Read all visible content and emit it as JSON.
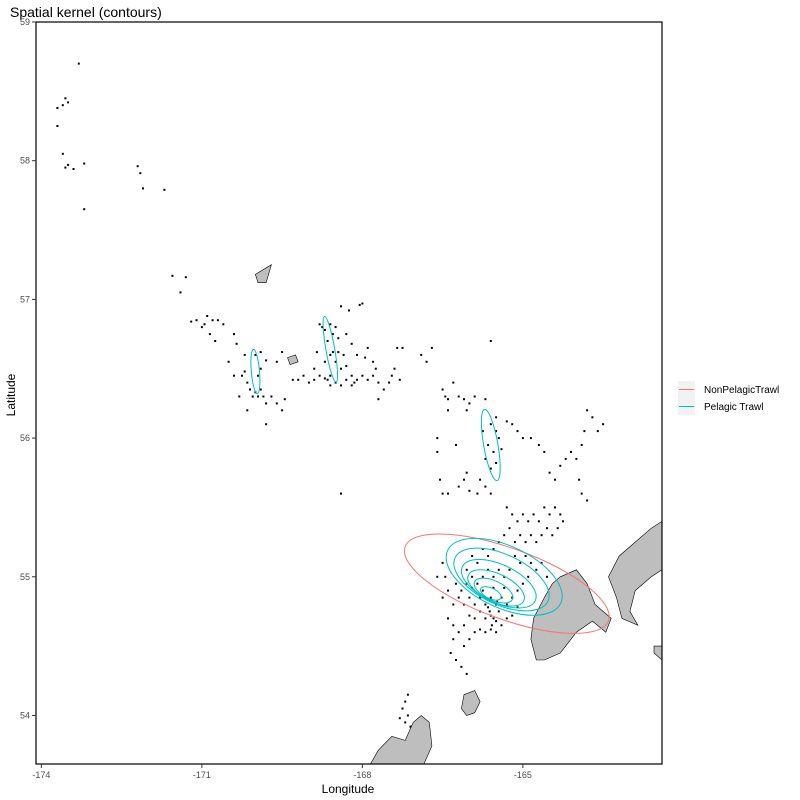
{
  "chart_data": {
    "type": "scatter",
    "title": "Spatial kernel (contours)",
    "xlabel": "Longitude",
    "ylabel": "Latitude",
    "xlim": [
      -174.1,
      -162.4
    ],
    "ylim": [
      53.65,
      59.0
    ],
    "xticks": [
      -174,
      -171,
      -168,
      -165
    ],
    "xtick_labels": [
      "-174",
      "-171",
      "-168",
      "-165"
    ],
    "yticks": [
      54,
      55,
      56,
      57,
      58,
      59
    ],
    "ytick_labels": [
      "54",
      "55",
      "56",
      "57",
      "58",
      "59"
    ],
    "grid": false,
    "legend_position": "right",
    "series": [
      {
        "name": "NonPelagicTrawl",
        "color": "#f8766d",
        "kind": "contour"
      },
      {
        "name": "Pelagic Trawl",
        "color": "#00bfc4",
        "kind": "contour"
      }
    ],
    "contours": {
      "NonPelagicTrawl": [
        {
          "cx": -165.3,
          "cy": 54.95,
          "rx": 1.2,
          "ry": 0.78,
          "rot": 20
        }
      ],
      "Pelagic Trawl": [
        {
          "cx": -165.35,
          "cy": 55.0,
          "rx": 1.05,
          "ry": 0.45,
          "rot": 25
        },
        {
          "cx": -165.4,
          "cy": 54.98,
          "rx": 0.85,
          "ry": 0.37,
          "rot": 25
        },
        {
          "cx": -165.45,
          "cy": 54.95,
          "rx": 0.65,
          "ry": 0.29,
          "rot": 25
        },
        {
          "cx": -165.5,
          "cy": 54.92,
          "rx": 0.48,
          "ry": 0.22,
          "rot": 25
        },
        {
          "cx": -165.55,
          "cy": 54.9,
          "rx": 0.33,
          "ry": 0.15,
          "rot": 25
        },
        {
          "cx": -165.6,
          "cy": 54.88,
          "rx": 0.18,
          "ry": 0.08,
          "rot": 25
        },
        {
          "cx": -165.6,
          "cy": 55.95,
          "rx": 0.24,
          "ry": 0.26,
          "rot": 80
        },
        {
          "cx": -170.0,
          "cy": 56.48,
          "rx": 0.14,
          "ry": 0.16,
          "rot": 85
        },
        {
          "cx": -168.6,
          "cy": 56.64,
          "rx": 0.15,
          "ry": 0.24,
          "rot": 80
        }
      ]
    },
    "landmasses": [
      [
        [
          -170.0,
          57.18
        ],
        [
          -169.7,
          57.25
        ],
        [
          -169.8,
          57.12
        ],
        [
          -169.95,
          57.12
        ]
      ],
      [
        [
          -169.4,
          56.58
        ],
        [
          -169.25,
          56.6
        ],
        [
          -169.2,
          56.55
        ],
        [
          -169.35,
          56.53
        ]
      ],
      [
        [
          -164.3,
          55.0
        ],
        [
          -164.0,
          55.05
        ],
        [
          -163.8,
          54.95
        ],
        [
          -163.65,
          54.8
        ],
        [
          -163.35,
          54.7
        ],
        [
          -163.45,
          54.6
        ],
        [
          -163.7,
          54.68
        ],
        [
          -164.0,
          54.6
        ],
        [
          -164.3,
          54.45
        ],
        [
          -164.6,
          54.4
        ],
        [
          -164.75,
          54.4
        ],
        [
          -164.85,
          54.55
        ],
        [
          -164.8,
          54.7
        ],
        [
          -164.6,
          54.85
        ],
        [
          -164.45,
          54.95
        ]
      ],
      [
        [
          -163.4,
          55.0
        ],
        [
          -163.2,
          55.15
        ],
        [
          -162.9,
          55.25
        ],
        [
          -162.6,
          55.35
        ],
        [
          -162.4,
          55.4
        ],
        [
          -162.4,
          55.05
        ],
        [
          -162.6,
          55.0
        ],
        [
          -162.9,
          54.9
        ],
        [
          -163.0,
          54.75
        ],
        [
          -162.85,
          54.65
        ],
        [
          -163.15,
          54.7
        ],
        [
          -163.25,
          54.85
        ]
      ],
      [
        [
          -162.55,
          54.5
        ],
        [
          -162.4,
          54.5
        ],
        [
          -162.4,
          54.4
        ],
        [
          -162.55,
          54.45
        ]
      ],
      [
        [
          -166.1,
          54.15
        ],
        [
          -165.9,
          54.18
        ],
        [
          -165.8,
          54.1
        ],
        [
          -165.9,
          54.02
        ],
        [
          -166.05,
          54.0
        ],
        [
          -166.15,
          54.05
        ]
      ],
      [
        [
          -167.2,
          53.82
        ],
        [
          -167.45,
          53.85
        ],
        [
          -167.7,
          53.75
        ],
        [
          -167.85,
          53.65
        ],
        [
          -166.85,
          53.65
        ],
        [
          -166.7,
          53.78
        ],
        [
          -166.75,
          53.95
        ],
        [
          -166.9,
          54.0
        ],
        [
          -167.05,
          53.95
        ]
      ]
    ],
    "points": [
      [
        -173.6,
        58.4
      ],
      [
        -173.5,
        58.42
      ],
      [
        -173.55,
        58.45
      ],
      [
        -173.3,
        58.7
      ],
      [
        -173.7,
        58.25
      ],
      [
        -173.7,
        58.38
      ],
      [
        -173.6,
        58.05
      ],
      [
        -173.55,
        57.95
      ],
      [
        -173.5,
        57.97
      ],
      [
        -173.4,
        57.94
      ],
      [
        -173.2,
        57.98
      ],
      [
        -173.2,
        57.65
      ],
      [
        -172.2,
        57.96
      ],
      [
        -172.15,
        57.91
      ],
      [
        -172.1,
        57.8
      ],
      [
        -171.7,
        57.79
      ],
      [
        -171.55,
        57.17
      ],
      [
        -171.3,
        57.16
      ],
      [
        -171.4,
        57.05
      ],
      [
        -171.2,
        56.84
      ],
      [
        -171.1,
        56.85
      ],
      [
        -171.0,
        56.8
      ],
      [
        -170.95,
        56.82
      ],
      [
        -170.9,
        56.88
      ],
      [
        -170.8,
        56.85
      ],
      [
        -170.7,
        56.85
      ],
      [
        -170.85,
        56.75
      ],
      [
        -170.6,
        56.82
      ],
      [
        -170.75,
        56.7
      ],
      [
        -170.4,
        56.75
      ],
      [
        -170.35,
        56.68
      ],
      [
        -170.2,
        56.6
      ],
      [
        -170.0,
        56.6
      ],
      [
        -169.9,
        56.62
      ],
      [
        -169.8,
        56.56
      ],
      [
        -169.6,
        56.55
      ],
      [
        -169.5,
        56.62
      ],
      [
        -170.2,
        56.48
      ],
      [
        -170.15,
        56.4
      ],
      [
        -170.1,
        56.35
      ],
      [
        -170.05,
        56.3
      ],
      [
        -170.0,
        56.33
      ],
      [
        -169.95,
        56.3
      ],
      [
        -169.9,
        56.35
      ],
      [
        -169.85,
        56.3
      ],
      [
        -169.8,
        56.25
      ],
      [
        -169.7,
        56.3
      ],
      [
        -169.6,
        56.25
      ],
      [
        -169.5,
        56.2
      ],
      [
        -169.45,
        56.28
      ],
      [
        -169.8,
        56.1
      ],
      [
        -170.15,
        56.2
      ],
      [
        -170.3,
        56.3
      ],
      [
        -170.5,
        56.55
      ],
      [
        -170.4,
        56.45
      ],
      [
        -170.25,
        56.45
      ],
      [
        -169.95,
        56.45
      ],
      [
        -169.9,
        56.5
      ],
      [
        -169.3,
        56.42
      ],
      [
        -169.2,
        56.42
      ],
      [
        -169.1,
        56.45
      ],
      [
        -169.0,
        56.4
      ],
      [
        -168.9,
        56.42
      ],
      [
        -168.8,
        56.45
      ],
      [
        -168.7,
        56.43
      ],
      [
        -168.6,
        56.45
      ],
      [
        -168.5,
        56.4
      ],
      [
        -168.4,
        56.38
      ],
      [
        -168.3,
        56.42
      ],
      [
        -168.2,
        56.45
      ],
      [
        -168.1,
        56.42
      ],
      [
        -168.0,
        56.45
      ],
      [
        -167.9,
        56.42
      ],
      [
        -167.8,
        56.45
      ],
      [
        -167.7,
        56.4
      ],
      [
        -168.8,
        56.82
      ],
      [
        -168.75,
        56.8
      ],
      [
        -168.7,
        56.78
      ],
      [
        -168.6,
        56.82
      ],
      [
        -168.55,
        56.75
      ],
      [
        -168.5,
        56.8
      ],
      [
        -168.45,
        56.72
      ],
      [
        -168.4,
        56.95
      ],
      [
        -168.25,
        56.92
      ],
      [
        -168.0,
        56.97
      ],
      [
        -168.05,
        56.96
      ],
      [
        -168.3,
        56.75
      ],
      [
        -168.2,
        56.68
      ],
      [
        -168.1,
        56.6
      ],
      [
        -168.6,
        56.6
      ],
      [
        -168.7,
        56.55
      ],
      [
        -168.5,
        56.55
      ],
      [
        -168.4,
        56.5
      ],
      [
        -168.3,
        56.52
      ],
      [
        -168.85,
        56.62
      ],
      [
        -168.9,
        56.5
      ],
      [
        -168.65,
        56.7
      ],
      [
        -168.55,
        56.62
      ],
      [
        -168.45,
        56.62
      ],
      [
        -168.35,
        56.6
      ],
      [
        -168.65,
        56.42
      ],
      [
        -168.6,
        56.38
      ],
      [
        -168.2,
        56.38
      ],
      [
        -168.15,
        56.4
      ],
      [
        -167.95,
        56.58
      ],
      [
        -167.9,
        56.65
      ],
      [
        -167.8,
        56.55
      ],
      [
        -167.75,
        56.5
      ],
      [
        -167.6,
        56.35
      ],
      [
        -167.5,
        56.4
      ],
      [
        -167.45,
        56.45
      ],
      [
        -167.4,
        56.5
      ],
      [
        -167.35,
        56.65
      ],
      [
        -167.25,
        56.65
      ],
      [
        -167.3,
        56.42
      ],
      [
        -167.7,
        56.28
      ],
      [
        -168.4,
        55.6
      ],
      [
        -166.8,
        56.55
      ],
      [
        -166.7,
        56.65
      ],
      [
        -166.9,
        56.6
      ],
      [
        -166.5,
        56.35
      ],
      [
        -166.45,
        56.3
      ],
      [
        -166.4,
        56.28
      ],
      [
        -166.4,
        56.2
      ],
      [
        -166.3,
        56.4
      ],
      [
        -166.2,
        56.3
      ],
      [
        -166.1,
        56.28
      ],
      [
        -166.0,
        56.25
      ],
      [
        -166.05,
        56.2
      ],
      [
        -165.9,
        56.3
      ],
      [
        -165.7,
        56.28
      ],
      [
        -165.5,
        56.15
      ],
      [
        -165.3,
        56.12
      ],
      [
        -165.2,
        56.1
      ],
      [
        -165.1,
        56.05
      ],
      [
        -165.0,
        56.0
      ],
      [
        -164.85,
        56.0
      ],
      [
        -164.7,
        55.95
      ],
      [
        -164.6,
        55.9
      ],
      [
        -164.5,
        55.75
      ],
      [
        -164.4,
        55.7
      ],
      [
        -164.3,
        55.8
      ],
      [
        -164.2,
        55.85
      ],
      [
        -164.1,
        55.9
      ],
      [
        -164.0,
        55.85
      ],
      [
        -163.9,
        55.95
      ],
      [
        -163.85,
        56.05
      ],
      [
        -163.8,
        56.2
      ],
      [
        -163.7,
        56.15
      ],
      [
        -163.6,
        56.05
      ],
      [
        -163.5,
        56.1
      ],
      [
        -163.95,
        55.7
      ],
      [
        -163.9,
        55.6
      ],
      [
        -163.8,
        55.55
      ],
      [
        -165.6,
        56.7
      ],
      [
        -166.6,
        56.0
      ],
      [
        -166.25,
        55.95
      ],
      [
        -166.05,
        55.75
      ],
      [
        -166.1,
        55.7
      ],
      [
        -166.2,
        55.65
      ],
      [
        -166.4,
        55.6
      ],
      [
        -166.5,
        55.6
      ],
      [
        -166.55,
        55.7
      ],
      [
        -166.6,
        55.9
      ],
      [
        -165.6,
        56.1
      ],
      [
        -165.5,
        56.05
      ],
      [
        -165.45,
        56.0
      ],
      [
        -165.65,
        55.95
      ],
      [
        -165.55,
        55.9
      ],
      [
        -165.7,
        55.85
      ],
      [
        -165.5,
        55.82
      ],
      [
        -165.6,
        55.78
      ],
      [
        -165.75,
        56.05
      ],
      [
        -165.4,
        55.92
      ],
      [
        -165.8,
        55.7
      ],
      [
        -165.7,
        55.65
      ],
      [
        -165.6,
        55.6
      ],
      [
        -165.85,
        55.6
      ],
      [
        -166.0,
        55.62
      ],
      [
        -165.3,
        55.5
      ],
      [
        -165.2,
        55.45
      ],
      [
        -165.1,
        55.4
      ],
      [
        -165.0,
        55.45
      ],
      [
        -164.9,
        55.4
      ],
      [
        -164.8,
        55.45
      ],
      [
        -164.7,
        55.4
      ],
      [
        -164.6,
        55.5
      ],
      [
        -164.5,
        55.45
      ],
      [
        -164.4,
        55.5
      ],
      [
        -164.3,
        55.45
      ],
      [
        -164.25,
        55.4
      ],
      [
        -164.35,
        55.35
      ],
      [
        -164.45,
        55.3
      ],
      [
        -164.55,
        55.35
      ],
      [
        -164.65,
        55.3
      ],
      [
        -164.75,
        55.25
      ],
      [
        -164.85,
        55.3
      ],
      [
        -164.95,
        55.25
      ],
      [
        -165.05,
        55.3
      ],
      [
        -165.15,
        55.25
      ],
      [
        -165.25,
        55.35
      ],
      [
        -165.35,
        55.3
      ],
      [
        -165.45,
        55.25
      ],
      [
        -165.55,
        55.2
      ],
      [
        -165.65,
        55.15
      ],
      [
        -165.75,
        55.2
      ],
      [
        -165.85,
        55.1
      ],
      [
        -165.95,
        55.15
      ],
      [
        -166.05,
        55.05
      ],
      [
        -165.15,
        55.15
      ],
      [
        -165.05,
        55.1
      ],
      [
        -164.95,
        55.15
      ],
      [
        -164.85,
        55.1
      ],
      [
        -164.75,
        55.05
      ],
      [
        -164.65,
        55.1
      ],
      [
        -164.55,
        55.0
      ],
      [
        -165.25,
        55.05
      ],
      [
        -165.35,
        55.0
      ],
      [
        -165.45,
        55.05
      ],
      [
        -165.55,
        55.0
      ],
      [
        -165.65,
        55.05
      ],
      [
        -165.75,
        55.0
      ],
      [
        -165.85,
        54.95
      ],
      [
        -165.95,
        55.0
      ],
      [
        -166.05,
        54.95
      ],
      [
        -166.15,
        54.9
      ],
      [
        -166.25,
        54.95
      ],
      [
        -166.3,
        54.8
      ],
      [
        -166.2,
        54.85
      ],
      [
        -166.1,
        54.8
      ],
      [
        -166.0,
        54.85
      ],
      [
        -165.9,
        54.8
      ],
      [
        -165.8,
        54.85
      ],
      [
        -165.7,
        54.8
      ],
      [
        -165.6,
        54.85
      ],
      [
        -165.5,
        54.8
      ],
      [
        -165.4,
        54.85
      ],
      [
        -165.3,
        54.8
      ],
      [
        -165.2,
        54.85
      ],
      [
        -165.1,
        54.9
      ],
      [
        -165.0,
        54.95
      ],
      [
        -164.9,
        55.0
      ],
      [
        -165.7,
        54.7
      ],
      [
        -165.6,
        54.72
      ],
      [
        -165.5,
        54.68
      ],
      [
        -165.8,
        54.75
      ],
      [
        -165.9,
        54.7
      ],
      [
        -166.0,
        54.72
      ],
      [
        -166.1,
        54.65
      ],
      [
        -166.2,
        54.6
      ],
      [
        -166.3,
        54.55
      ],
      [
        -166.35,
        54.45
      ],
      [
        -166.25,
        54.4
      ],
      [
        -166.15,
        54.35
      ],
      [
        -166.05,
        54.3
      ],
      [
        -166.1,
        54.5
      ],
      [
        -166.0,
        54.55
      ],
      [
        -165.9,
        54.6
      ],
      [
        -165.8,
        54.62
      ],
      [
        -165.7,
        54.6
      ],
      [
        -165.6,
        54.62
      ],
      [
        -165.5,
        54.6
      ],
      [
        -165.4,
        54.65
      ],
      [
        -165.3,
        54.7
      ],
      [
        -165.2,
        54.72
      ],
      [
        -165.1,
        54.78
      ],
      [
        -166.4,
        54.9
      ],
      [
        -166.45,
        55.0
      ],
      [
        -166.5,
        55.1
      ],
      [
        -166.6,
        55.0
      ],
      [
        -166.5,
        54.85
      ],
      [
        -166.4,
        54.7
      ],
      [
        -166.3,
        54.65
      ],
      [
        -165.95,
        54.92
      ],
      [
        -165.75,
        54.9
      ],
      [
        -165.55,
        54.92
      ],
      [
        -165.35,
        54.92
      ],
      [
        -165.65,
        54.78
      ],
      [
        -165.45,
        54.75
      ],
      [
        -165.55,
        54.7
      ],
      [
        -165.62,
        54.75
      ],
      [
        -165.48,
        54.82
      ],
      [
        -165.58,
        54.65
      ],
      [
        -167.15,
        54.15
      ],
      [
        -167.2,
        54.1
      ],
      [
        -167.25,
        54.05
      ],
      [
        -167.15,
        54.0
      ],
      [
        -167.3,
        53.98
      ],
      [
        -167.2,
        53.95
      ],
      [
        -167.1,
        53.92
      ]
    ]
  }
}
